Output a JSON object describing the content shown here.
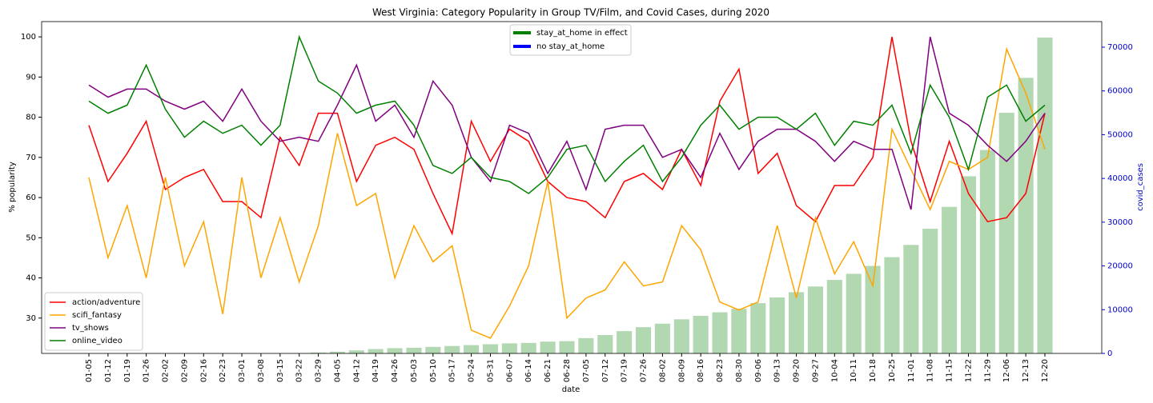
{
  "chart_data": {
    "type": "line",
    "title": "West Virginia: Category Popularity in Group TV/Film, and Covid Cases, during 2020",
    "x_label": "date",
    "y_label": "% popularity",
    "y2_label": "covid_cases",
    "y2_color": "#0000cc",
    "categories": [
      "01-05",
      "01-12",
      "01-19",
      "01-26",
      "02-02",
      "02-09",
      "02-16",
      "02-23",
      "03-01",
      "03-08",
      "03-15",
      "03-22",
      "03-29",
      "04-05",
      "04-12",
      "04-19",
      "04-26",
      "05-03",
      "05-10",
      "05-17",
      "05-24",
      "05-31",
      "06-07",
      "06-14",
      "06-21",
      "06-28",
      "07-05",
      "07-12",
      "07-19",
      "07-26",
      "08-02",
      "08-09",
      "08-16",
      "08-23",
      "08-30",
      "09-06",
      "09-13",
      "09-20",
      "09-27",
      "10-04",
      "10-11",
      "10-18",
      "10-25",
      "11-01",
      "11-08",
      "11-15",
      "11-22",
      "11-29",
      "12-06",
      "12-13",
      "12-20"
    ],
    "ylim": [
      21.2,
      103.8
    ],
    "yticks": [
      30,
      40,
      50,
      60,
      70,
      80,
      90,
      100
    ],
    "y2lim": [
      0,
      75850
    ],
    "y2ticks": [
      0,
      10000,
      20000,
      30000,
      40000,
      50000,
      60000,
      70000
    ],
    "legend": "lower left",
    "series": [
      {
        "name": "action/adventure",
        "color": "#ff0000",
        "values": [
          78,
          64,
          71,
          79,
          62,
          65,
          67,
          59,
          59,
          55,
          75,
          68,
          81,
          81,
          64,
          73,
          75,
          72,
          61,
          51,
          79,
          69,
          77,
          74,
          64,
          60,
          59,
          55,
          64,
          66,
          62,
          72,
          63,
          84,
          92,
          66,
          71,
          58,
          54,
          63,
          63,
          70,
          100,
          74,
          59,
          74,
          61,
          54,
          55,
          61,
          81
        ]
      },
      {
        "name": "scifi_fantasy",
        "color": "#ffa500",
        "values": [
          65,
          45,
          58,
          40,
          65,
          43,
          54,
          31,
          65,
          40,
          55,
          39,
          53,
          76,
          58,
          61,
          40,
          53,
          44,
          48,
          27,
          25,
          33,
          43,
          64,
          30,
          35,
          37,
          44,
          38,
          39,
          53,
          47,
          34,
          32,
          34,
          53,
          35,
          55,
          41,
          49,
          38,
          77,
          67,
          57,
          69,
          67,
          70,
          97,
          86,
          72
        ]
      },
      {
        "name": "tv_shows",
        "color": "#800080",
        "values": [
          88,
          85,
          87,
          87,
          84,
          82,
          84,
          79,
          87,
          79,
          74,
          75,
          74,
          83,
          93,
          79,
          83,
          75,
          89,
          83,
          70,
          64,
          78,
          76,
          66,
          74,
          62,
          77,
          78,
          78,
          70,
          72,
          65,
          76,
          67,
          74,
          77,
          77,
          74,
          69,
          74,
          72,
          72,
          57,
          100,
          81,
          78,
          73,
          69,
          74,
          81
        ]
      },
      {
        "name": "online_video",
        "color": "#008000",
        "values": [
          84,
          81,
          83,
          93,
          82,
          75,
          79,
          76,
          78,
          73,
          78,
          100,
          89,
          86,
          81,
          83,
          84,
          78,
          68,
          66,
          70,
          65,
          64,
          61,
          65,
          72,
          73,
          64,
          69,
          73,
          64,
          70,
          78,
          83,
          77,
          80,
          80,
          77,
          81,
          73,
          79,
          78,
          83,
          71,
          88,
          80,
          67,
          85,
          88,
          79,
          83
        ]
      },
      {
        "name": "covid_cases",
        "type": "bar",
        "axis": "y2",
        "color": "#b2d8b2",
        "values": [
          0,
          0,
          0,
          0,
          0,
          0,
          0,
          0,
          0,
          0,
          0,
          50,
          200,
          400,
          700,
          1000,
          1200,
          1300,
          1500,
          1700,
          1900,
          2100,
          2300,
          2400,
          2700,
          2800,
          3500,
          4200,
          5100,
          6000,
          6800,
          7800,
          8600,
          9400,
          10200,
          11500,
          12800,
          14000,
          15300,
          16800,
          18200,
          20000,
          22000,
          24800,
          28500,
          33500,
          40500,
          46500,
          55000,
          63000,
          72200
        ]
      }
    ],
    "phase_legend": [
      {
        "name": "stay_at_home in effect",
        "color": "#008000"
      },
      {
        "name": "no stay_at_home",
        "color": "#0000ff"
      }
    ]
  }
}
